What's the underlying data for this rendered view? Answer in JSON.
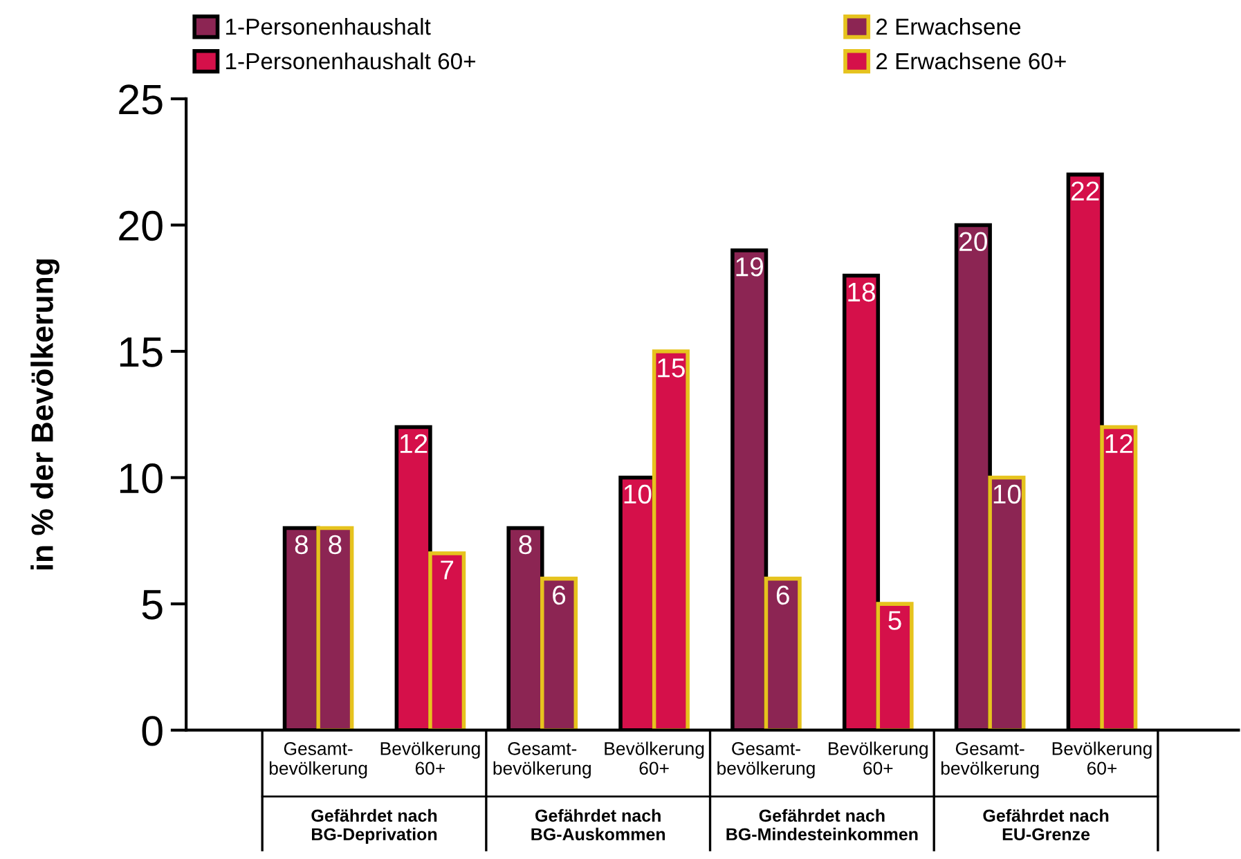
{
  "chart_data": {
    "type": "bar",
    "ylabel": "in % der Bevölkerung",
    "categories": [
      "Gesamt-\nbevölkerung",
      "Bevölkerung\n60+",
      "Gesamt-\nbevölkerung",
      "Bevölkerung\n60+",
      "Gesamt-\nbevölkerung",
      "Bevölkerung\n60+",
      "Gesamt-\nbevölkerung",
      "Bevölkerung\n60+"
    ],
    "annotations": [
      "Gefährdet nach\nBG-Deprivation",
      "Gefährdet nach\nBG-Auskommen",
      "Gefährdet nach\nBG-Mindesteinkommen",
      "Gefährdet nach\nEU-Grenze"
    ],
    "series": [
      {
        "name": "1-Personenhaushalt",
        "color": "#8c2553",
        "values": [
          8,
          null,
          8,
          null,
          19,
          null,
          20,
          null
        ]
      },
      {
        "name": "2 Erwachsene",
        "color": "#8c2553",
        "values": [
          8,
          null,
          6,
          null,
          6,
          null,
          10,
          null
        ]
      },
      {
        "name": "1-Personenhaushalt 60+",
        "color": "#d5104a",
        "values": [
          null,
          12,
          null,
          10,
          null,
          18,
          null,
          22
        ]
      },
      {
        "name": "2 Erwachsene 60+",
        "color": "#d5104a",
        "values": [
          null,
          7,
          null,
          15,
          null,
          5,
          null,
          12
        ]
      }
    ],
    "ylim": [
      0,
      25
    ],
    "yticks": [
      0,
      5,
      10,
      15,
      20,
      25
    ],
    "data_labels": true,
    "grid": false,
    "legend": "top"
  }
}
